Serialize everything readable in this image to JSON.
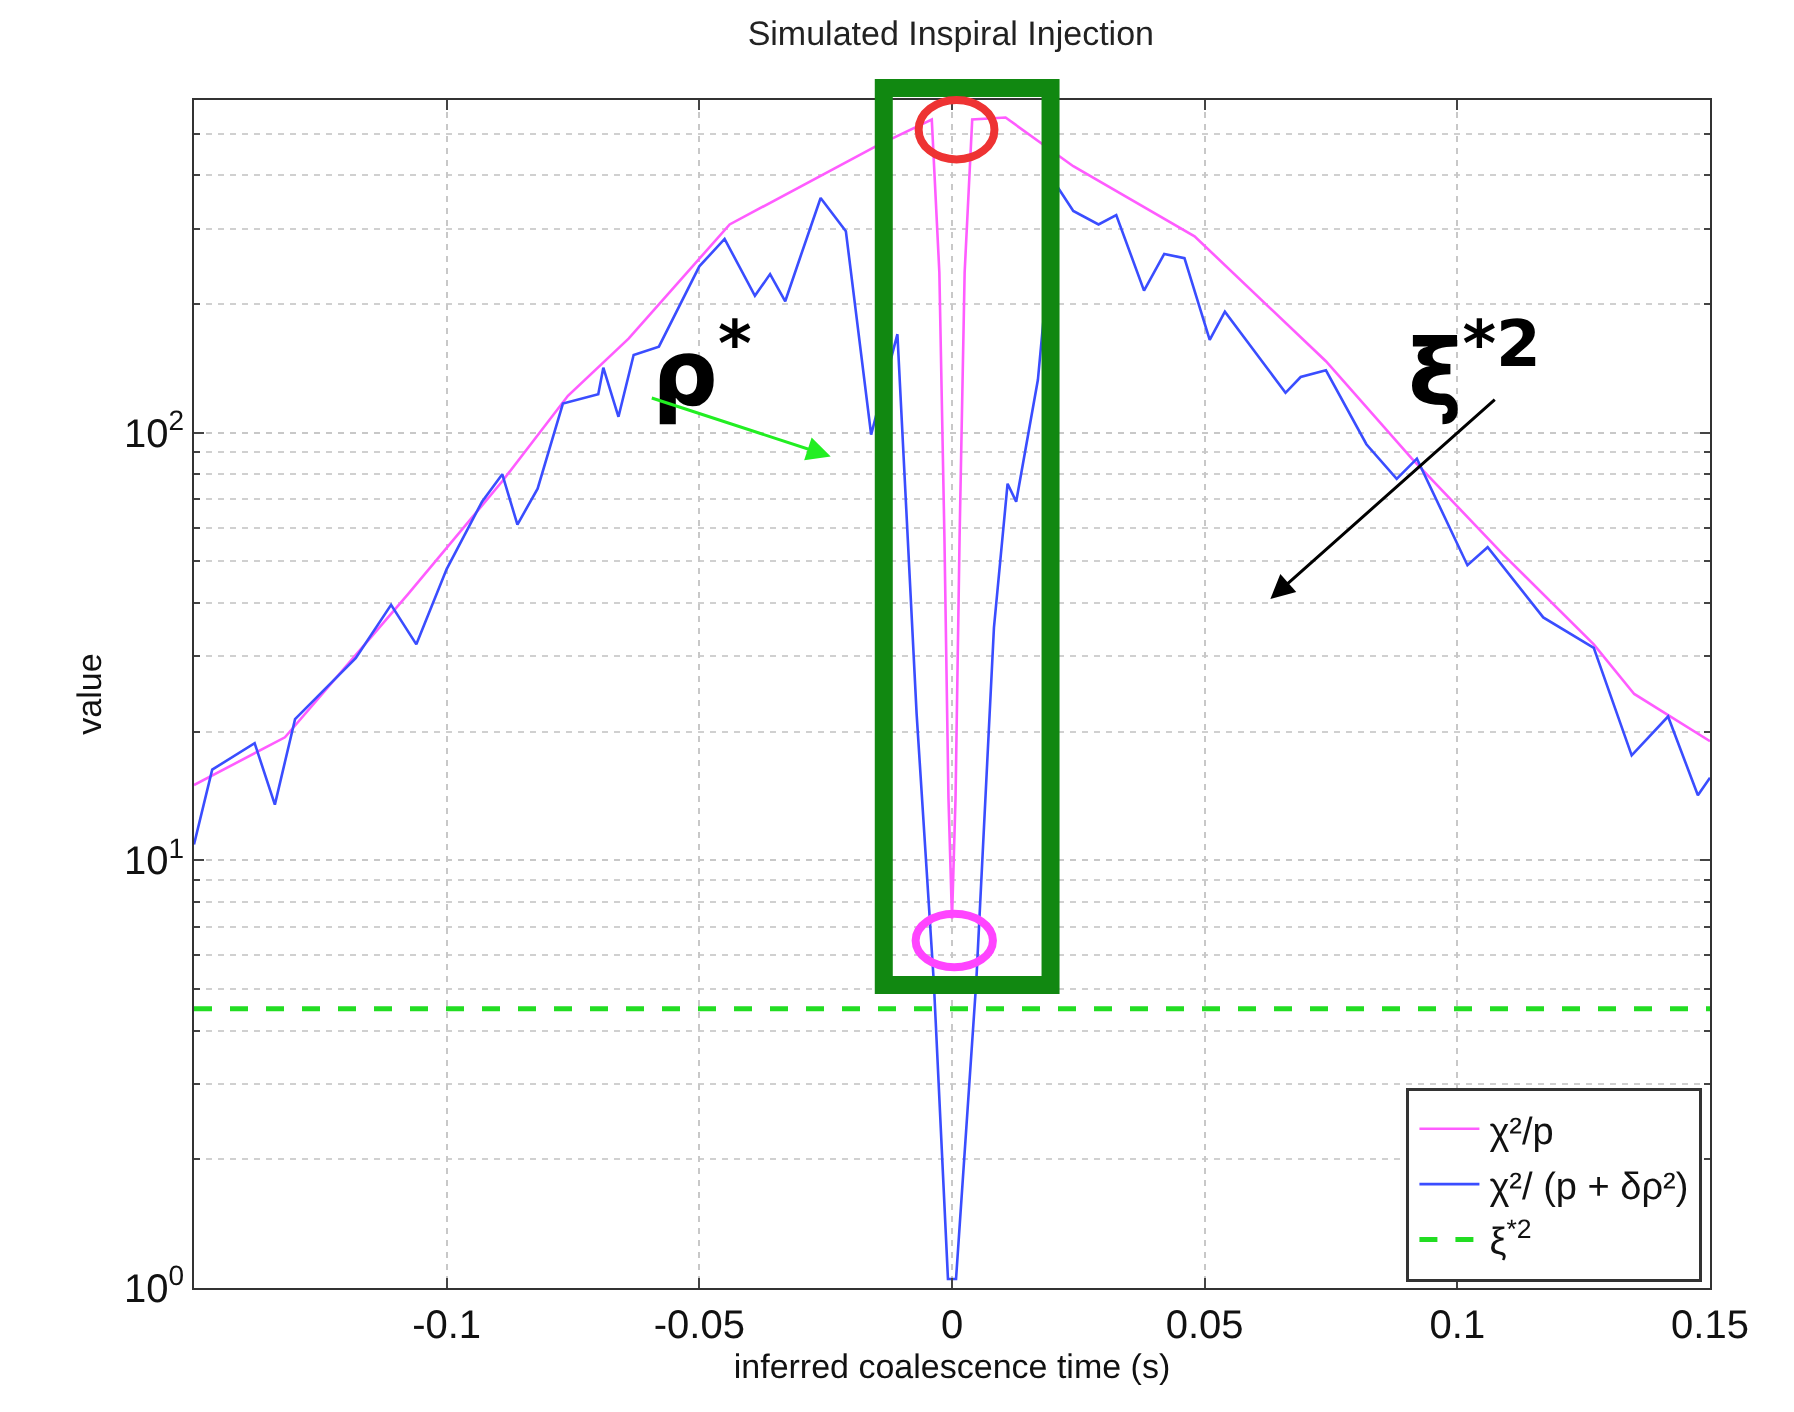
{
  "chart_data": {
    "type": "line",
    "title": "Simulated Inspiral Injection",
    "xlabel": "inferred coalescence time (s)",
    "ylabel": "value",
    "log": "y",
    "xlim": [
      -0.15,
      0.15
    ],
    "xticks": [
      -0.1,
      -0.05,
      0,
      0.05,
      0.1,
      0.15
    ],
    "ylim": [
      1,
      600
    ],
    "yticks": [
      {
        "value": 1,
        "label": "10$^{0}$"
      },
      {
        "value": 10,
        "label": "10$^{1}$"
      },
      {
        "value": 100,
        "label": "10$^{2}$"
      }
    ],
    "grid": true,
    "legend": "bottom right",
    "annotations": [
      "ρ$^{*}$",
      "ξ$^{*2}$"
    ],
    "series": [
      {
        "name": "χ²/p",
        "color": "#ff5cff",
        "line_style": "solid",
        "x": [
          -0.15,
          -0.132,
          -0.1076,
          -0.089,
          -0.076,
          -0.064,
          -0.044,
          -0.015,
          -0.004,
          -0.0025,
          -0.0015,
          -0.0007,
          0,
          0.0007,
          0.0015,
          0.0025,
          0.004,
          0.0106,
          0.024,
          0.048,
          0.074,
          0.091,
          0.109,
          0.127,
          0.135,
          0.15
        ],
        "values": [
          15,
          19.4,
          42,
          77,
          122,
          166,
          307,
          468,
          540,
          237,
          57,
          14,
          7.3,
          14,
          57,
          237,
          540,
          546,
          420,
          288,
          147,
          87,
          52,
          32,
          24.5,
          19
        ]
      },
      {
        "name": "χ²/ (p + δρ²)",
        "color": "#3a4dff",
        "line_style": "solid",
        "x": [
          -0.15,
          -0.1464,
          -0.138,
          -0.134,
          -0.13,
          -0.118,
          -0.111,
          -0.106,
          -0.1,
          -0.093,
          -0.089,
          -0.086,
          -0.082,
          -0.077,
          -0.07,
          -0.069,
          -0.066,
          -0.063,
          -0.058,
          -0.05,
          -0.045,
          -0.039,
          -0.036,
          -0.033,
          -0.03,
          -0.026,
          -0.021,
          -0.016,
          -0.0108,
          -0.007,
          -0.0036,
          -0.0008,
          0.0008,
          0.0048,
          0.0083,
          0.011,
          0.0127,
          0.017,
          0.0206,
          0.024,
          0.029,
          0.0325,
          0.038,
          0.042,
          0.046,
          0.051,
          0.054,
          0.066,
          0.069,
          0.074,
          0.082,
          0.088,
          0.092,
          0.102,
          0.106,
          0.117,
          0.127,
          0.1345,
          0.1417,
          0.1476,
          0.15
        ],
        "values": [
          10.9,
          16.3,
          18.8,
          13.5,
          21.4,
          29.7,
          39.6,
          32,
          48,
          69,
          80,
          61,
          74,
          117,
          123,
          142,
          109,
          152,
          159,
          245,
          284,
          209,
          235,
          203,
          258,
          354,
          296,
          99,
          170,
          22,
          5.2,
          1.05,
          1.05,
          5.2,
          35,
          76,
          69,
          133,
          380,
          330,
          307,
          323,
          215,
          262,
          256,
          165,
          192,
          124,
          135,
          140,
          94,
          78,
          87,
          49,
          54,
          37,
          31.4,
          17.6,
          21.7,
          14.2,
          15.6
        ]
      },
      {
        "name": "ξ$^{*2}$",
        "color": "#22dd22",
        "line_style": "dashed",
        "x": [
          -0.15,
          0.15
        ],
        "values": [
          4.5,
          4.5
        ]
      }
    ]
  }
}
